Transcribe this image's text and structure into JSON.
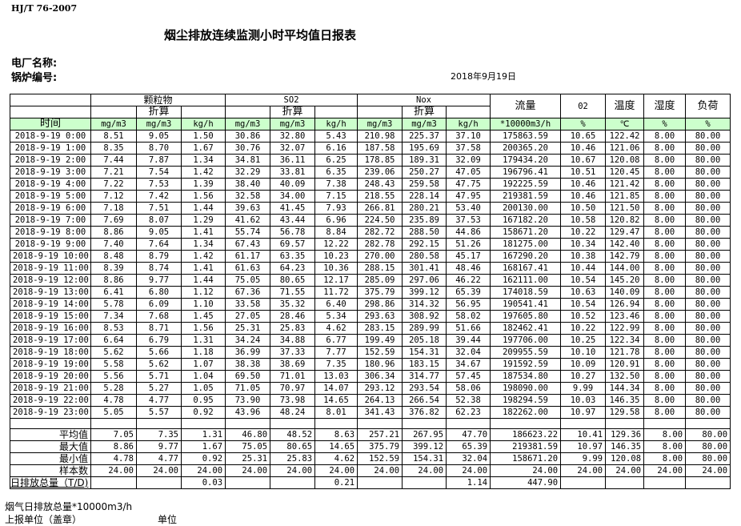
{
  "header": {
    "standard": "HJ/T  76-2007",
    "title": "烟尘排放连续监测小时平均值日报表",
    "plant_label": "电厂名称:",
    "boiler_label": "锅炉编号:",
    "date": "2018年9月19日"
  },
  "table": {
    "group_particulate": "颗粒物",
    "group_so2": "SO2",
    "group_nox": "Nox",
    "converted": "折算",
    "flow": "流量",
    "o2": "02",
    "temperature": "温度",
    "humidity": "湿度",
    "load": "负荷",
    "units": [
      "时间",
      "mg/m3",
      "mg/m3",
      "kg/h",
      "mg/m3",
      "mg/m3",
      "kg/h",
      "mg/m3",
      "mg/m3",
      "kg/h",
      "*10000m3/h",
      "%",
      "℃",
      "%",
      "%"
    ],
    "rows": [
      [
        "2018-9-19 0:00",
        "8.51",
        "9.05",
        "1.50",
        "30.86",
        "32.80",
        "5.43",
        "210.98",
        "225.37",
        "37.10",
        "175863.59",
        "10.65",
        "122.42",
        "8.00",
        "80.00"
      ],
      [
        "2018-9-19 1:00",
        "8.35",
        "8.70",
        "1.67",
        "30.76",
        "32.07",
        "6.16",
        "187.58",
        "195.69",
        "37.58",
        "200365.20",
        "10.46",
        "121.06",
        "8.00",
        "80.00"
      ],
      [
        "2018-9-19 2:00",
        "7.44",
        "7.87",
        "1.34",
        "34.81",
        "36.11",
        "6.25",
        "178.85",
        "189.31",
        "32.09",
        "179434.20",
        "10.67",
        "120.08",
        "8.00",
        "80.00"
      ],
      [
        "2018-9-19 3:00",
        "7.21",
        "7.54",
        "1.42",
        "32.29",
        "33.81",
        "6.35",
        "239.06",
        "250.27",
        "47.05",
        "196796.41",
        "10.51",
        "120.45",
        "8.00",
        "80.00"
      ],
      [
        "2018-9-19 4:00",
        "7.22",
        "7.53",
        "1.39",
        "38.40",
        "40.09",
        "7.38",
        "248.43",
        "259.58",
        "47.75",
        "192225.59",
        "10.46",
        "121.42",
        "8.00",
        "80.00"
      ],
      [
        "2018-9-19 5:00",
        "7.12",
        "7.42",
        "1.56",
        "32.58",
        "34.00",
        "7.15",
        "218.55",
        "228.14",
        "47.95",
        "219381.59",
        "10.46",
        "121.85",
        "8.00",
        "80.00"
      ],
      [
        "2018-9-19 6:00",
        "7.18",
        "7.51",
        "1.44",
        "39.63",
        "41.45",
        "7.93",
        "266.81",
        "280.21",
        "53.40",
        "200130.00",
        "10.50",
        "121.50",
        "8.00",
        "80.00"
      ],
      [
        "2018-9-19 7:00",
        "7.69",
        "8.07",
        "1.29",
        "41.62",
        "43.44",
        "6.96",
        "224.50",
        "235.89",
        "37.53",
        "167182.20",
        "10.58",
        "120.82",
        "8.00",
        "80.00"
      ],
      [
        "2018-9-19 8:00",
        "8.86",
        "9.05",
        "1.41",
        "55.74",
        "56.78",
        "8.84",
        "282.72",
        "288.50",
        "44.86",
        "158671.20",
        "10.22",
        "129.47",
        "8.00",
        "80.00"
      ],
      [
        "2018-9-19 9:00",
        "7.40",
        "7.64",
        "1.34",
        "67.43",
        "69.57",
        "12.22",
        "282.78",
        "292.15",
        "51.26",
        "181275.00",
        "10.34",
        "142.40",
        "8.00",
        "80.00"
      ],
      [
        "2018-9-19 10:00",
        "8.48",
        "8.79",
        "1.42",
        "61.17",
        "63.35",
        "10.23",
        "270.00",
        "280.58",
        "45.17",
        "167290.20",
        "10.38",
        "142.79",
        "8.00",
        "80.00"
      ],
      [
        "2018-9-19 11:00",
        "8.39",
        "8.74",
        "1.41",
        "61.63",
        "64.23",
        "10.36",
        "288.15",
        "301.41",
        "48.46",
        "168167.41",
        "10.44",
        "144.00",
        "8.00",
        "80.00"
      ],
      [
        "2018-9-19 12:00",
        "8.86",
        "9.77",
        "1.44",
        "75.05",
        "80.65",
        "12.17",
        "285.09",
        "297.06",
        "46.22",
        "162111.00",
        "10.54",
        "145.20",
        "8.00",
        "80.00"
      ],
      [
        "2018-9-19 13:00",
        "6.41",
        "6.80",
        "1.12",
        "67.36",
        "71.55",
        "11.72",
        "375.79",
        "399.12",
        "65.39",
        "174018.59",
        "10.63",
        "140.09",
        "8.00",
        "80.00"
      ],
      [
        "2018-9-19 14:00",
        "5.78",
        "6.09",
        "1.10",
        "33.58",
        "35.32",
        "6.40",
        "298.86",
        "314.32",
        "56.95",
        "190541.41",
        "10.54",
        "126.94",
        "8.00",
        "80.00"
      ],
      [
        "2018-9-19 15:00",
        "7.34",
        "7.68",
        "1.45",
        "27.05",
        "28.46",
        "5.34",
        "293.63",
        "308.92",
        "58.02",
        "197605.80",
        "10.52",
        "123.46",
        "8.00",
        "80.00"
      ],
      [
        "2018-9-19 16:00",
        "8.53",
        "8.71",
        "1.56",
        "25.31",
        "25.83",
        "4.62",
        "283.15",
        "289.99",
        "51.66",
        "182462.41",
        "10.22",
        "122.99",
        "8.00",
        "80.00"
      ],
      [
        "2018-9-19 17:00",
        "6.64",
        "6.79",
        "1.31",
        "34.24",
        "34.88",
        "6.77",
        "199.49",
        "205.18",
        "39.44",
        "197706.00",
        "10.25",
        "122.34",
        "8.00",
        "80.00"
      ],
      [
        "2018-9-19 18:00",
        "5.62",
        "5.66",
        "1.18",
        "36.99",
        "37.33",
        "7.77",
        "152.59",
        "154.31",
        "32.04",
        "209955.59",
        "10.10",
        "121.78",
        "8.00",
        "80.00"
      ],
      [
        "2018-9-19 19:00",
        "5.58",
        "5.62",
        "1.07",
        "38.38",
        "38.69",
        "7.35",
        "180.96",
        "183.15",
        "34.67",
        "191592.59",
        "10.09",
        "120.91",
        "8.00",
        "80.00"
      ],
      [
        "2018-9-19 20:00",
        "5.56",
        "5.71",
        "1.04",
        "69.50",
        "71.01",
        "13.03",
        "306.34",
        "314.77",
        "57.45",
        "187534.80",
        "10.27",
        "132.50",
        "8.00",
        "80.00"
      ],
      [
        "2018-9-19 21:00",
        "5.28",
        "5.27",
        "1.05",
        "71.05",
        "70.97",
        "14.07",
        "293.12",
        "293.54",
        "58.06",
        "198090.00",
        "9.99",
        "144.34",
        "8.00",
        "80.00"
      ],
      [
        "2018-9-19 22:00",
        "4.78",
        "4.77",
        "0.95",
        "73.90",
        "73.98",
        "14.65",
        "264.13",
        "266.54",
        "52.38",
        "198294.59",
        "10.03",
        "146.35",
        "8.00",
        "80.00"
      ],
      [
        "2018-9-19 23:00",
        "5.05",
        "5.57",
        "0.92",
        "43.96",
        "48.24",
        "8.01",
        "341.43",
        "376.82",
        "62.23",
        "182262.00",
        "10.97",
        "129.58",
        "8.00",
        "80.00"
      ]
    ],
    "stats": [
      [
        "平均值",
        "7.05",
        "7.35",
        "1.31",
        "46.80",
        "48.52",
        "8.63",
        "257.21",
        "267.95",
        "47.70",
        "186623.22",
        "10.41",
        "129.36",
        "8.00",
        "80.00"
      ],
      [
        "最大值",
        "8.86",
        "9.77",
        "1.67",
        "75.05",
        "80.65",
        "14.65",
        "375.79",
        "399.12",
        "65.39",
        "219381.59",
        "10.97",
        "146.35",
        "8.00",
        "80.00"
      ],
      [
        "最小值",
        "4.78",
        "4.77",
        "0.92",
        "25.31",
        "25.83",
        "4.62",
        "152.59",
        "154.31",
        "32.04",
        "158671.20",
        "9.99",
        "120.08",
        "8.00",
        "80.00"
      ],
      [
        "样本数",
        "24.00",
        "24.00",
        "24.00",
        "24.00",
        "24.00",
        "24.00",
        "24.00",
        "24.00",
        "24.00",
        "24.00",
        "24.00",
        "24.00",
        "24.00",
        "24.00"
      ]
    ],
    "total": [
      "日排放总量（T/D)",
      "",
      "",
      "0.03",
      "",
      "",
      "0.21",
      "",
      "",
      "1.14",
      "447.90",
      "",
      "",
      "",
      ""
    ]
  },
  "footer": {
    "flue_gas_total": "烟气日排放总量*10000m3/h",
    "reporting_unit": "上报单位（盖章）",
    "unit": "单位"
  }
}
